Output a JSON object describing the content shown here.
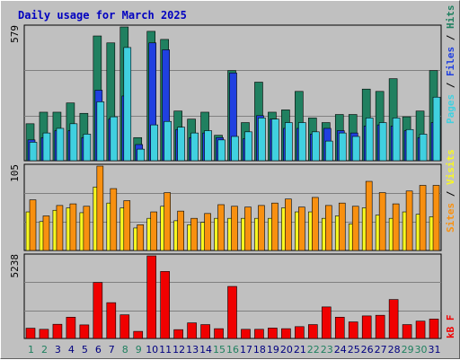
{
  "chart_data": [
    {
      "type": "bar",
      "title": "Daily usage for March 2025",
      "ymax_label": "579",
      "series": [
        {
          "name": "Hits",
          "color": "#208060",
          "values": [
            160,
            210,
            210,
            250,
            205,
            540,
            510,
            579,
            100,
            560,
            525,
            215,
            180,
            210,
            110,
            390,
            165,
            340,
            210,
            220,
            300,
            185,
            165,
            200,
            200,
            310,
            300,
            355,
            190,
            215,
            390
          ]
        },
        {
          "name": "Files",
          "color": "#2040e0",
          "values": [
            90,
            100,
            130,
            130,
            100,
            305,
            180,
            280,
            70,
            510,
            480,
            135,
            100,
            120,
            100,
            380,
            95,
            195,
            180,
            140,
            140,
            115,
            140,
            130,
            120,
            150,
            155,
            150,
            130,
            100,
            165
          ]
        },
        {
          "name": "Pages",
          "color": "#40d0e0",
          "values": [
            80,
            120,
            140,
            160,
            115,
            255,
            190,
            490,
            50,
            155,
            170,
            145,
            120,
            130,
            90,
            105,
            125,
            185,
            180,
            165,
            165,
            125,
            85,
            120,
            105,
            185,
            165,
            185,
            135,
            115,
            275
          ]
        }
      ],
      "categories": [
        "1",
        "2",
        "3",
        "4",
        "5",
        "6",
        "7",
        "8",
        "9",
        "10",
        "11",
        "12",
        "13",
        "14",
        "15",
        "16",
        "17",
        "18",
        "19",
        "20",
        "21",
        "22",
        "23",
        "24",
        "25",
        "26",
        "27",
        "28",
        "29",
        "30",
        "31"
      ],
      "weekend_days": [
        1,
        2,
        8,
        9,
        15,
        16,
        22,
        23,
        29,
        30
      ]
    },
    {
      "type": "bar",
      "ymax_label": "105",
      "series": [
        {
          "name": "Visits",
          "color": "#f8f820",
          "values": [
            48,
            36,
            50,
            53,
            47,
            79,
            59,
            53,
            28,
            40,
            55,
            37,
            32,
            35,
            40,
            40,
            40,
            40,
            40,
            53,
            48,
            48,
            40,
            43,
            33,
            53,
            44,
            40,
            48,
            45,
            42
          ]
        },
        {
          "name": "Sites",
          "color": "#f89010",
          "values": [
            63,
            43,
            56,
            58,
            55,
            105,
            77,
            62,
            32,
            48,
            72,
            49,
            40,
            46,
            57,
            55,
            54,
            56,
            59,
            64,
            54,
            66,
            56,
            59,
            55,
            86,
            72,
            58,
            74,
            81,
            81
          ]
        }
      ]
    },
    {
      "type": "bar",
      "ymax_label": "5238",
      "series": [
        {
          "name": "kB F",
          "color": "#f00000",
          "values": [
            650,
            580,
            900,
            1350,
            860,
            3550,
            2270,
            1500,
            450,
            5238,
            4250,
            560,
            990,
            880,
            620,
            3300,
            580,
            580,
            660,
            620,
            750,
            880,
            2000,
            1350,
            1050,
            1430,
            1470,
            2470,
            880,
            1100,
            1230
          ]
        }
      ]
    }
  ]
}
